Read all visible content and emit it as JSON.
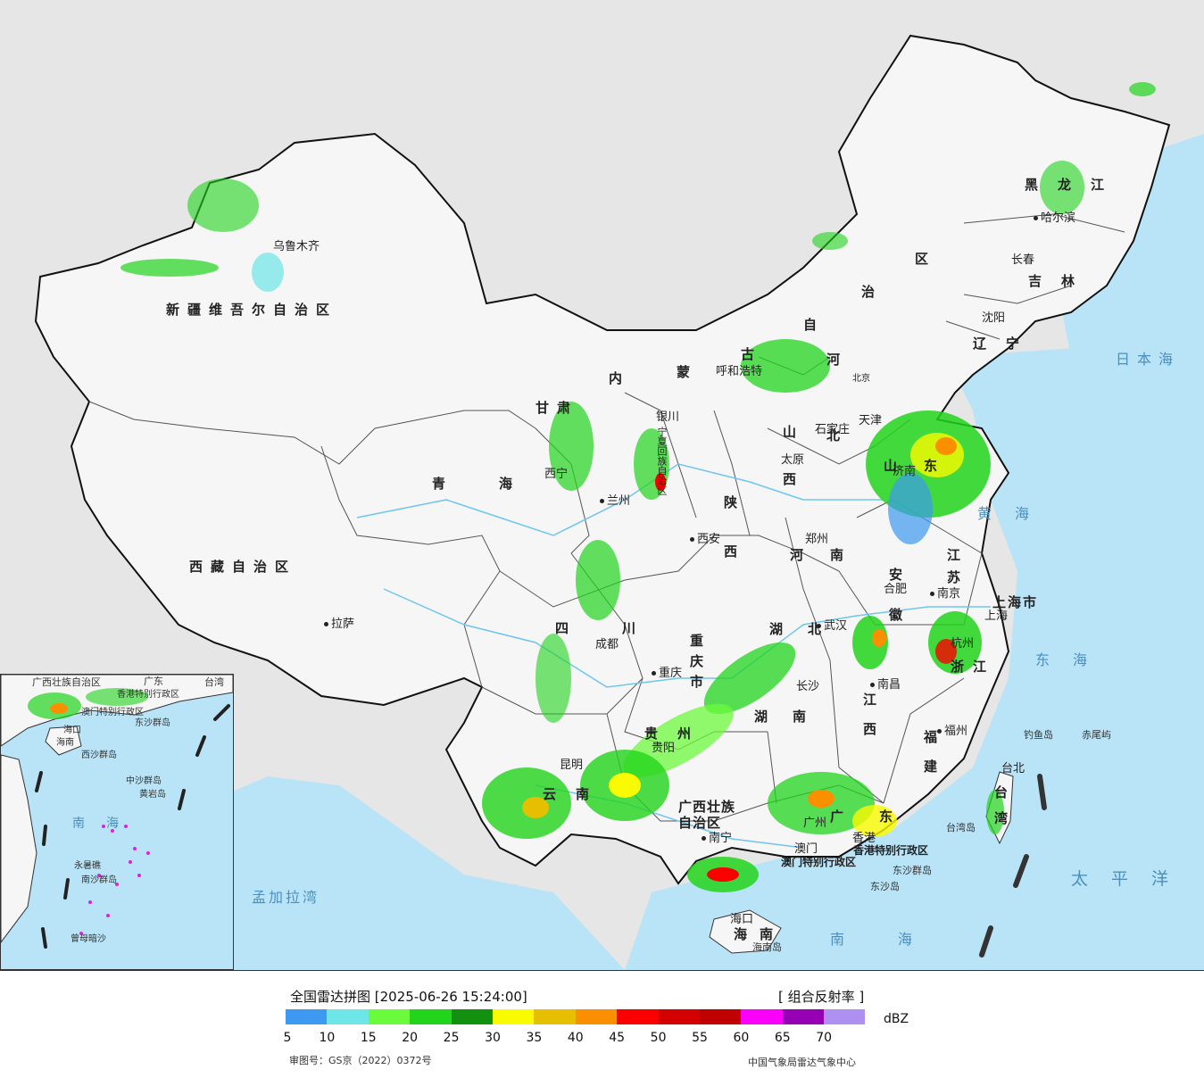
{
  "map": {
    "provinces": {
      "xinjiang": "新疆维吾尔自治区",
      "tibet": "西藏自治区",
      "qinghai": "青海",
      "gansu": "甘肃",
      "neimenggu_1": "内",
      "neimenggu_2": "蒙",
      "neimenggu_3": "古",
      "neimenggu_4": "自",
      "neimenggu_5": "治",
      "neimenggu_6": "区",
      "heilongjiang": "黑龙江",
      "jilin": "吉林",
      "liaoning": "辽宁",
      "hebei": "河北",
      "shanxi": "山西",
      "shaanxi": "陕西",
      "ningxia": "宁夏回族自治区",
      "henan": "河南",
      "shandong": "山东",
      "jiangsu": "江苏",
      "anhui": "安徽",
      "hubei": "湖北",
      "sichuan": "四川",
      "chongqing": "重庆市",
      "guizhou": "贵州",
      "yunnan": "云南",
      "hunan": "湖南",
      "jiangxi": "江西",
      "zhejiang": "浙江",
      "fujian": "福建",
      "guangxi": "广西壮族自治区",
      "guangdong": "广东",
      "taiwan": "台湾",
      "hainan": "海南",
      "shanghai": "上海市",
      "hk": "香港特别行政区",
      "macao": "澳门特别行政区"
    },
    "cities": {
      "urumqi": "乌鲁木齐",
      "lhasa": "拉萨",
      "xining": "西宁",
      "lanzhou": "兰州",
      "yinchuan": "银川",
      "hohhot": "呼和浩特",
      "beijing": "北京",
      "tianjin": "天津",
      "shijiazhuang": "石家庄",
      "taiyuan": "太原",
      "jinan": "济南",
      "xian": "西安",
      "zhengzhou": "郑州",
      "hefei": "合肥",
      "nanjing": "南京",
      "shanghai_city": "上海",
      "hangzhou": "杭州",
      "wuhan": "武汉",
      "chengdu": "成都",
      "chongqing_city": "重庆",
      "changsha": "长沙",
      "nanchang": "南昌",
      "fuzhou": "福州",
      "guiyang": "贵阳",
      "kunming": "昆明",
      "nanning": "南宁",
      "guangzhou": "广州",
      "macau": "澳门",
      "hongkong": "香港",
      "haikou": "海口",
      "taipei": "台北",
      "shenyang": "沈阳",
      "changchun": "长春",
      "harbin": "哈尔滨"
    },
    "seas": {
      "japan_sea": "日本海",
      "yellow_sea": "黄海",
      "east_sea": "东海",
      "pacific": "太平洋",
      "south_sea": "南海",
      "bengal": "孟加拉湾"
    },
    "islands": {
      "diaoyu": "钓鱼岛",
      "chiwei": "赤尾屿",
      "taiwan_island": "台湾岛",
      "dongsha": "东沙群岛",
      "dongsha_island": "东沙岛",
      "hainan_island": "海南岛"
    },
    "inset": {
      "south_sea": "南海",
      "xisha": "西沙群岛",
      "zhongsha": "中沙群岛",
      "nansha": "南沙群岛",
      "yongshu": "永暑礁",
      "zengmu": "曾母暗沙",
      "huangyan": "黄岩岛",
      "hainan_label": "海南",
      "haikou_label": "海口",
      "guangdong_label": "广东",
      "guangxi_label": "广西壮族自治区",
      "taiwan_label": "台湾",
      "hk_label": "香港特别行政区",
      "macao_label": "澳门特别行政区",
      "dongsha_label": "东沙群岛"
    }
  },
  "legend": {
    "title": "全国雷达拼图 [2025-06-26 15:24:00]",
    "product": "[ 组合反射率 ]",
    "unit": "dBZ",
    "colors": [
      "#3d9af0",
      "#6ee6e8",
      "#6cfa3c",
      "#22d41c",
      "#129010",
      "#fafa00",
      "#e6c000",
      "#fa9000",
      "#fa0000",
      "#d40000",
      "#c00000",
      "#fa00fa",
      "#9600b4",
      "#ae90f0"
    ],
    "ticks": [
      "5",
      "10",
      "15",
      "20",
      "25",
      "30",
      "35",
      "40",
      "45",
      "50",
      "55",
      "60",
      "65",
      "70"
    ],
    "review_number": "审图号：GS京（2022）0372号",
    "source": "中国气象局雷达气象中心"
  }
}
